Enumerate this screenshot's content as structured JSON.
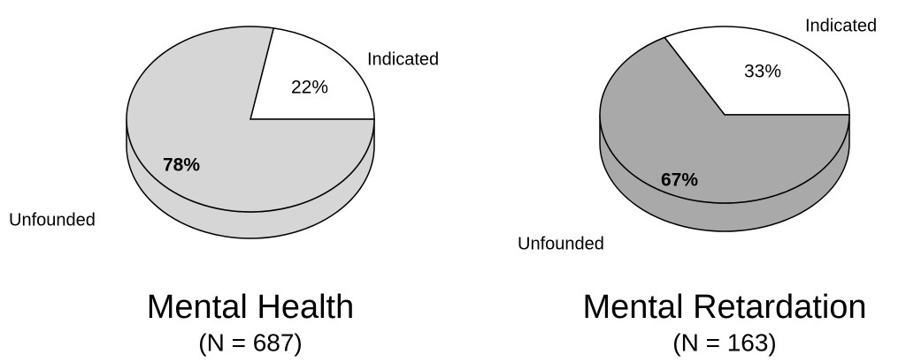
{
  "chart_data": [
    {
      "type": "pie",
      "title": "Mental Health",
      "subtitle": "(N = 687)",
      "categories": [
        "Indicated",
        "Unfounded"
      ],
      "values": [
        22,
        78
      ],
      "value_labels": [
        "22%",
        "78%"
      ],
      "colors": [
        "#ffffff",
        "#d6d6d6"
      ]
    },
    {
      "type": "pie",
      "title": "Mental Retardation",
      "subtitle": "(N = 163)",
      "categories": [
        "Indicated",
        "Unfounded"
      ],
      "values": [
        33,
        67
      ],
      "value_labels": [
        "33%",
        "67%"
      ],
      "colors": [
        "#ffffff",
        "#a9a9a9"
      ]
    }
  ]
}
